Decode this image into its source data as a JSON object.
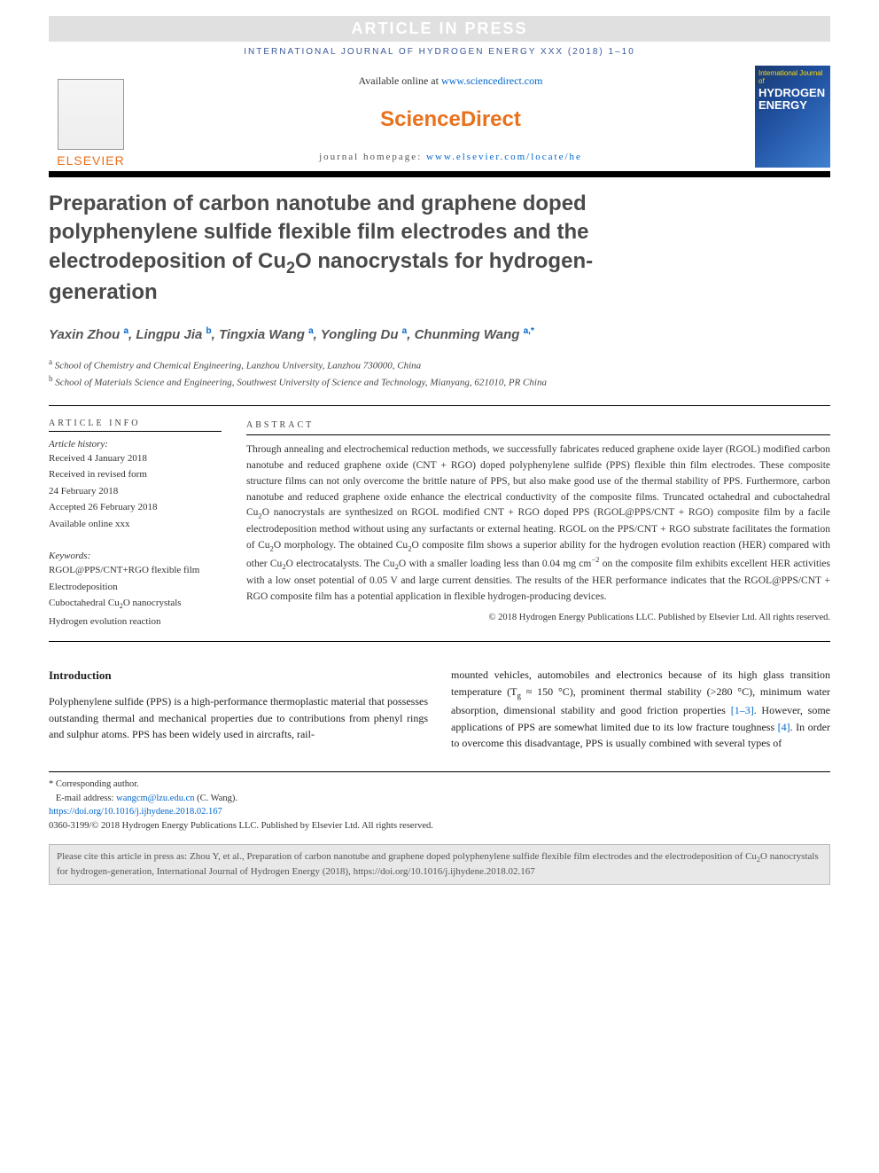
{
  "banner": "ARTICLE IN PRESS",
  "journal_ref": "INTERNATIONAL JOURNAL OF HYDROGEN ENERGY XXX (2018) 1–10",
  "header": {
    "available_prefix": "Available online at ",
    "available_link": "www.sciencedirect.com",
    "brand": "ScienceDirect",
    "homepage_prefix": "journal homepage: ",
    "homepage_link": "www.elsevier.com/locate/he",
    "elsevier": "ELSEVIER",
    "cover_top": "International Journal of",
    "cover_main1": "HYDROGEN",
    "cover_main2": "ENERGY"
  },
  "title_html": "Preparation of carbon nanotube and graphene doped polyphenylene sulfide flexible film electrodes and the electrodeposition of Cu<sub>2</sub>O nanocrystals for hydrogen-generation",
  "authors_html": "Yaxin Zhou <sup>a</sup>, Lingpu Jia <sup>b</sup>, Tingxia Wang <sup>a</sup>, Yongling Du <sup>a</sup>, Chunming Wang <sup>a,*</sup>",
  "affiliations": {
    "a": "School of Chemistry and Chemical Engineering, Lanzhou University, Lanzhou 730000, China",
    "b": "School of Materials Science and Engineering, Southwest University of Science and Technology, Mianyang, 621010, PR China"
  },
  "article_info": {
    "heading": "ARTICLE INFO",
    "history_label": "Article history:",
    "received": "Received 4 January 2018",
    "revised1": "Received in revised form",
    "revised2": "24 February 2018",
    "accepted": "Accepted 26 February 2018",
    "online": "Available online xxx",
    "keywords_label": "Keywords:",
    "kw1": "RGOL@PPS/CNT+RGO flexible film",
    "kw2": "Electrodeposition",
    "kw3_html": "Cuboctahedral Cu<sub>2</sub>O nanocrystals",
    "kw4": "Hydrogen evolution reaction"
  },
  "abstract": {
    "heading": "ABSTRACT",
    "text_html": "Through annealing and electrochemical reduction methods, we successfully fabricates reduced graphene oxide layer (RGOL) modified carbon nanotube and reduced graphene oxide (CNT + RGO) doped polyphenylene sulfide (PPS) flexible thin film electrodes. These composite structure films can not only overcome the brittle nature of PPS, but also make good use of the thermal stability of PPS. Furthermore, carbon nanotube and reduced graphene oxide enhance the electrical conductivity of the composite films. Truncated octahedral and cuboctahedral Cu<sub>2</sub>O nanocrystals are synthesized on RGOL modified CNT + RGO doped PPS (RGOL@PPS/CNT + RGO) composite film by a facile electrodeposition method without using any surfactants or external heating. RGOL on the PPS/CNT + RGO substrate facilitates the formation of Cu<sub>2</sub>O morphology. The obtained Cu<sub>2</sub>O composite film shows a superior ability for the hydrogen evolution reaction (HER) compared with other Cu<sub>2</sub>O electrocatalysts. The Cu<sub>2</sub>O with a smaller loading less than 0.04 mg cm<sup>−2</sup> on the composite film exhibits excellent HER activities with a low onset potential of 0.05 V and large current densities. The results of the HER performance indicates that the RGOL@PPS/CNT + RGO composite film has a potential application in flexible hydrogen-producing devices.",
    "copyright": "© 2018 Hydrogen Energy Publications LLC. Published by Elsevier Ltd. All rights reserved."
  },
  "body": {
    "section": "Introduction",
    "col1": "Polyphenylene sulfide (PPS) is a high-performance thermoplastic material that possesses outstanding thermal and mechanical properties due to contributions from phenyl rings and sulphur atoms. PPS has been widely used in aircrafts, rail-",
    "col2_html": "mounted vehicles, automobiles and electronics because of its high glass transition temperature (T<sub>g</sub> ≈ 150 °C), prominent thermal stability (>280 °C), minimum water absorption, dimensional stability and good friction properties <span class=\"ref-link\">[1–3]</span>. However, some applications of PPS are somewhat limited due to its low fracture toughness <span class=\"ref-link\">[4]</span>. In order to overcome this disadvantage, PPS is usually combined with several types of"
  },
  "footer": {
    "corr": "* Corresponding author.",
    "email_label": "E-mail address: ",
    "email": "wangcm@lzu.edu.cn",
    "email_person": " (C. Wang).",
    "doi": "https://doi.org/10.1016/j.ijhydene.2018.02.167",
    "issn_line": "0360-3199/© 2018 Hydrogen Energy Publications LLC. Published by Elsevier Ltd. All rights reserved."
  },
  "cite_box_html": "Please cite this article in press as: Zhou Y, et al., Preparation of carbon nanotube and graphene doped polyphenylene sulfide flexible film electrodes and the electrodeposition of Cu<sub>2</sub>O nanocrystals for hydrogen-generation, International Journal of Hydrogen Energy (2018), https://doi.org/10.1016/j.ijhydene.2018.02.167",
  "colors": {
    "orange": "#e9711c",
    "link": "#0066cc",
    "journal_ref": "#3b5998",
    "title_grey": "#4a4a4a",
    "cite_bg": "#e8e8e8"
  }
}
